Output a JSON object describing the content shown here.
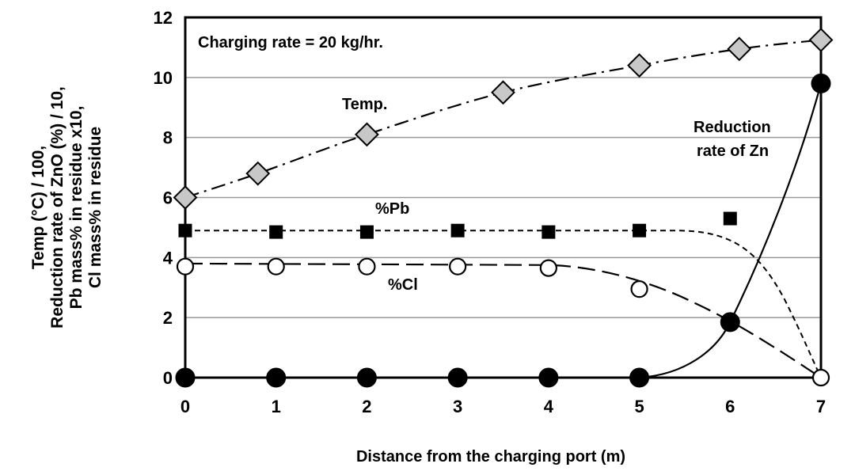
{
  "chart_data": {
    "type": "line",
    "xlabel": "Distance from the charging port (m)",
    "ylabel_lines": [
      "Temp (°C) / 100,",
      "Reduction rate of ZnO (%) / 10,",
      "Pb mass% in residue x10,",
      "Cl mass% in residue"
    ],
    "xlim": [
      0,
      7
    ],
    "ylim": [
      0,
      12
    ],
    "x_ticks": [
      "0",
      "1",
      "2",
      "3",
      "4",
      "5",
      "6",
      "7"
    ],
    "y_ticks": [
      "0",
      "2",
      "4",
      "6",
      "8",
      "10",
      "12"
    ],
    "grid": "horizontal",
    "annotations": {
      "charging": "Charging rate = 20 kg/hr.",
      "temp": "Temp.",
      "pb": "%Pb",
      "cl": "%Cl",
      "zn_line1": "Reduction",
      "zn_line2": "rate of Zn"
    },
    "series": [
      {
        "label": "Temp.",
        "marker": "diamond",
        "marker_color": "#c8c8c8",
        "line": "dash-dot",
        "x": [
          0,
          0.8,
          2,
          3.5,
          5,
          6.1,
          7
        ],
        "y": [
          6.0,
          6.8,
          8.1,
          9.5,
          10.4,
          10.95,
          11.25
        ]
      },
      {
        "label": "%Pb",
        "marker": "square",
        "marker_color": "#000000",
        "line": "short-dash",
        "x": [
          0,
          1,
          2,
          3,
          4,
          5,
          6
        ],
        "y": [
          4.9,
          4.85,
          4.85,
          4.9,
          4.85,
          4.9,
          5.3
        ]
      },
      {
        "label": "%Cl",
        "marker": "circle-open",
        "marker_color": "#ffffff",
        "line": "long-dash",
        "x": [
          0,
          1,
          2,
          3,
          4,
          5,
          7
        ],
        "y": [
          3.7,
          3.7,
          3.7,
          3.7,
          3.65,
          2.95,
          0
        ]
      },
      {
        "label": "Reduction rate of Zn",
        "marker": "circle-filled",
        "marker_color": "#000000",
        "line": "solid",
        "x": [
          0,
          1,
          2,
          3,
          4,
          5,
          6,
          7
        ],
        "y": [
          0,
          0,
          0,
          0,
          0,
          0,
          1.85,
          9.8
        ]
      }
    ]
  }
}
